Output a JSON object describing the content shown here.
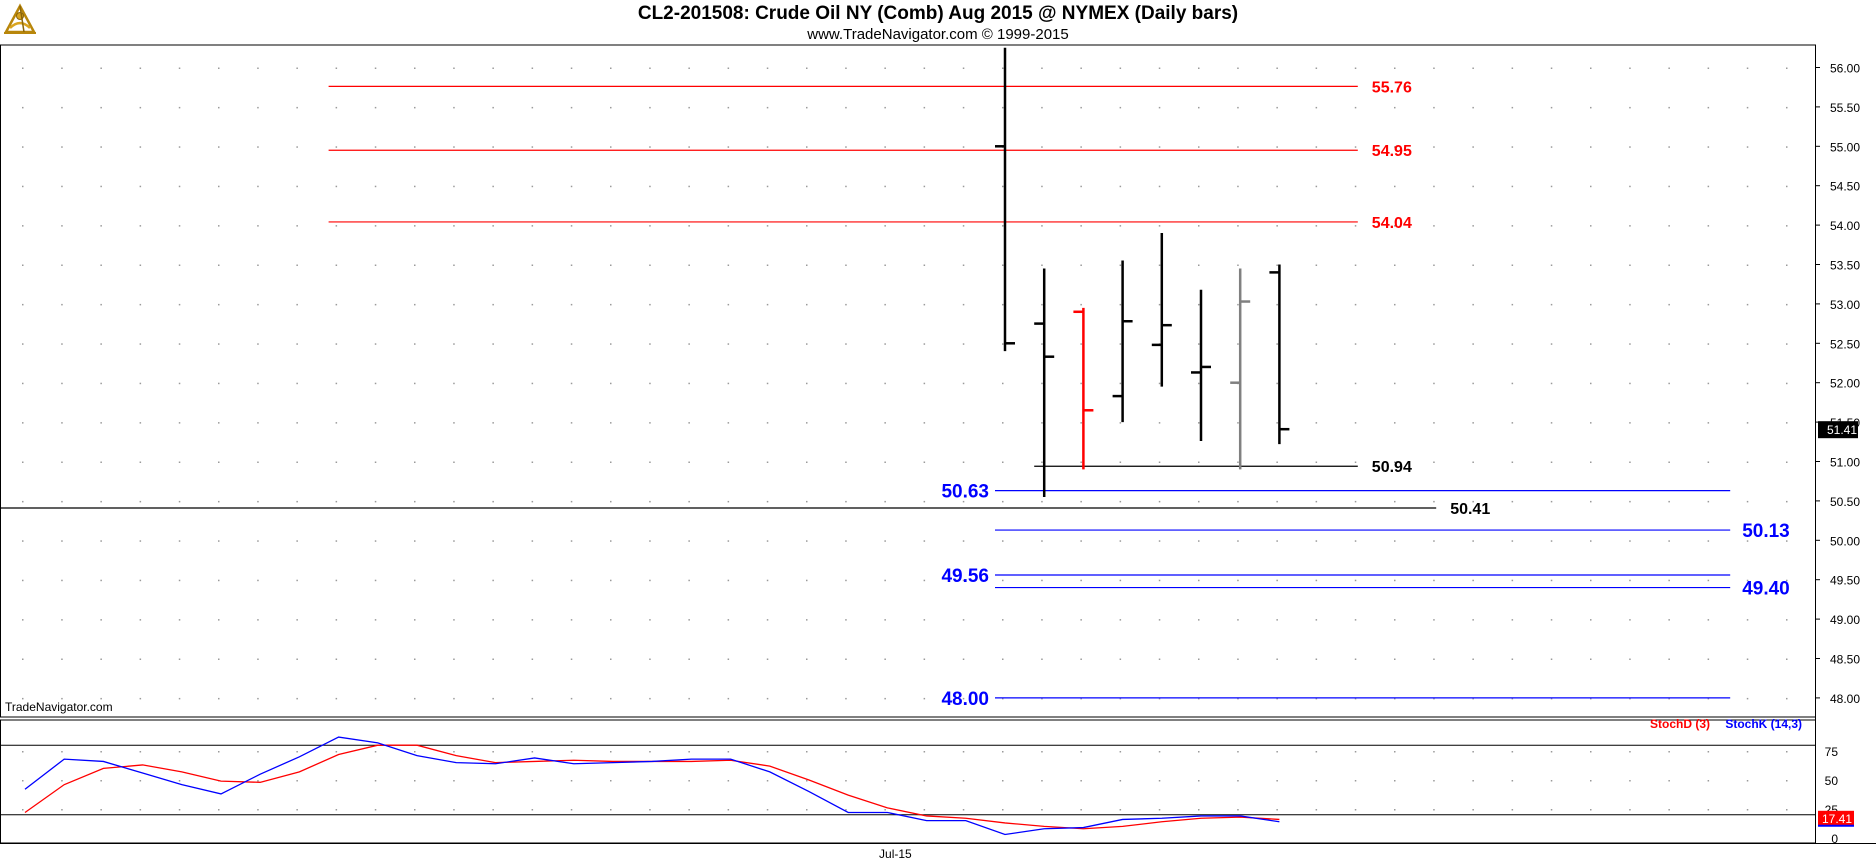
{
  "header": {
    "title": "CL2-201508:  Crude Oil NY (Comb) Aug 2015 @ NYMEX  (Daily bars)",
    "subtitle": "www.TradeNavigator.com © 1999-2015"
  },
  "watermark": "TradeNavigator.com",
  "colors": {
    "red": "#ff0000",
    "blue": "#0000ff",
    "black": "#000000",
    "gray": "#808080",
    "grid": "#9a9a9a"
  },
  "chart_data": [
    {
      "type": "ohlc",
      "ylim": [
        47.6,
        56.3
      ],
      "y_ticks": [
        "56.00",
        "55.50",
        "55.00",
        "54.50",
        "54.00",
        "53.50",
        "53.00",
        "52.50",
        "52.00",
        "51.50",
        "51.00",
        "50.50",
        "50.00",
        "49.50",
        "49.00",
        "48.50",
        "48.00"
      ],
      "x_labels": [
        {
          "label": "Jul-15",
          "index": 22
        }
      ],
      "bars": [
        {
          "index": 25,
          "open": 55.0,
          "high": 56.25,
          "low": 52.4,
          "close": 52.5,
          "color": "black"
        },
        {
          "index": 26,
          "open": 52.75,
          "high": 53.45,
          "low": 50.55,
          "close": 52.33,
          "color": "black"
        },
        {
          "index": 27,
          "open": 52.9,
          "high": 52.95,
          "low": 50.9,
          "close": 51.65,
          "color": "red"
        },
        {
          "index": 28,
          "open": 51.83,
          "high": 53.55,
          "low": 51.5,
          "close": 52.78,
          "color": "black"
        },
        {
          "index": 29,
          "open": 52.48,
          "high": 53.9,
          "low": 51.95,
          "close": 52.73,
          "color": "black"
        },
        {
          "index": 30,
          "open": 52.13,
          "high": 53.18,
          "low": 51.26,
          "close": 52.2,
          "color": "black"
        },
        {
          "index": 31,
          "open": 52.0,
          "high": 53.45,
          "low": 50.9,
          "close": 53.03,
          "color": "gray"
        },
        {
          "index": 32,
          "open": 53.4,
          "high": 53.5,
          "low": 51.22,
          "close": 51.41,
          "color": "black"
        }
      ],
      "last_price": "51.41",
      "horizontal_levels": [
        {
          "value": 55.76,
          "label": "55.76",
          "color": "red",
          "from": 8,
          "to": 34,
          "label_side": "right"
        },
        {
          "value": 54.95,
          "label": "54.95",
          "color": "red",
          "from": 8,
          "to": 34,
          "label_side": "right"
        },
        {
          "value": 54.04,
          "label": "54.04",
          "color": "red",
          "from": 8,
          "to": 34,
          "label_side": "right"
        },
        {
          "value": 50.94,
          "label": "50.94",
          "color": "black",
          "from": 26,
          "to": 34,
          "label_side": "right"
        },
        {
          "value": 50.63,
          "label": "50.63",
          "color": "blue",
          "from": 25,
          "to": 43.5,
          "label_side": "left"
        },
        {
          "value": 50.41,
          "label": "50.41",
          "color": "black",
          "from": -1,
          "to": 36,
          "label_side": "right"
        },
        {
          "value": 50.13,
          "label": "50.13",
          "color": "blue",
          "from": 25,
          "to": 43.5,
          "label_side": "right"
        },
        {
          "value": 49.56,
          "label": "49.56",
          "color": "blue",
          "from": 25,
          "to": 43.5,
          "label_side": "left"
        },
        {
          "value": 49.4,
          "label": "49.40",
          "color": "blue",
          "from": 25,
          "to": 43.5,
          "label_side": "right"
        },
        {
          "value": 48.0,
          "label": "48.00",
          "color": "blue",
          "from": 25,
          "to": 43.5,
          "label_side": "left"
        }
      ]
    },
    {
      "type": "line",
      "ylim": [
        0,
        100
      ],
      "y_ticks": [
        "75",
        "50",
        "25",
        "0"
      ],
      "hlines": [
        80,
        20
      ],
      "last_value": "17.41",
      "series": [
        {
          "name": "StochD (3)",
          "color": "red",
          "x": [
            0,
            1,
            2,
            3,
            4,
            5,
            6,
            7,
            8,
            9,
            10,
            11,
            12,
            13,
            14,
            15,
            16,
            17,
            18,
            19,
            20,
            21,
            22,
            23,
            24,
            25,
            26,
            27,
            28,
            29,
            30,
            31,
            32
          ],
          "values": [
            22,
            46,
            60,
            63,
            57,
            49,
            48,
            57,
            72,
            80,
            80,
            71,
            65,
            66,
            67,
            66,
            66,
            66,
            67,
            62,
            50,
            37,
            26,
            19,
            17,
            13,
            10,
            8,
            10,
            14,
            17,
            18,
            16
          ]
        },
        {
          "name": "StochK (14,3)",
          "color": "blue",
          "x": [
            0,
            1,
            2,
            3,
            4,
            5,
            6,
            7,
            8,
            9,
            10,
            11,
            12,
            13,
            14,
            15,
            16,
            17,
            18,
            19,
            20,
            21,
            22,
            23,
            24,
            25,
            26,
            27,
            28,
            29,
            30,
            31,
            32
          ],
          "values": [
            42,
            68,
            66,
            56,
            46,
            38,
            55,
            70,
            87,
            82,
            71,
            65,
            64,
            69,
            64,
            65,
            66,
            68,
            68,
            57,
            40,
            22,
            22,
            15,
            15,
            3,
            8,
            9,
            16,
            17,
            19,
            19,
            14
          ]
        }
      ]
    }
  ]
}
